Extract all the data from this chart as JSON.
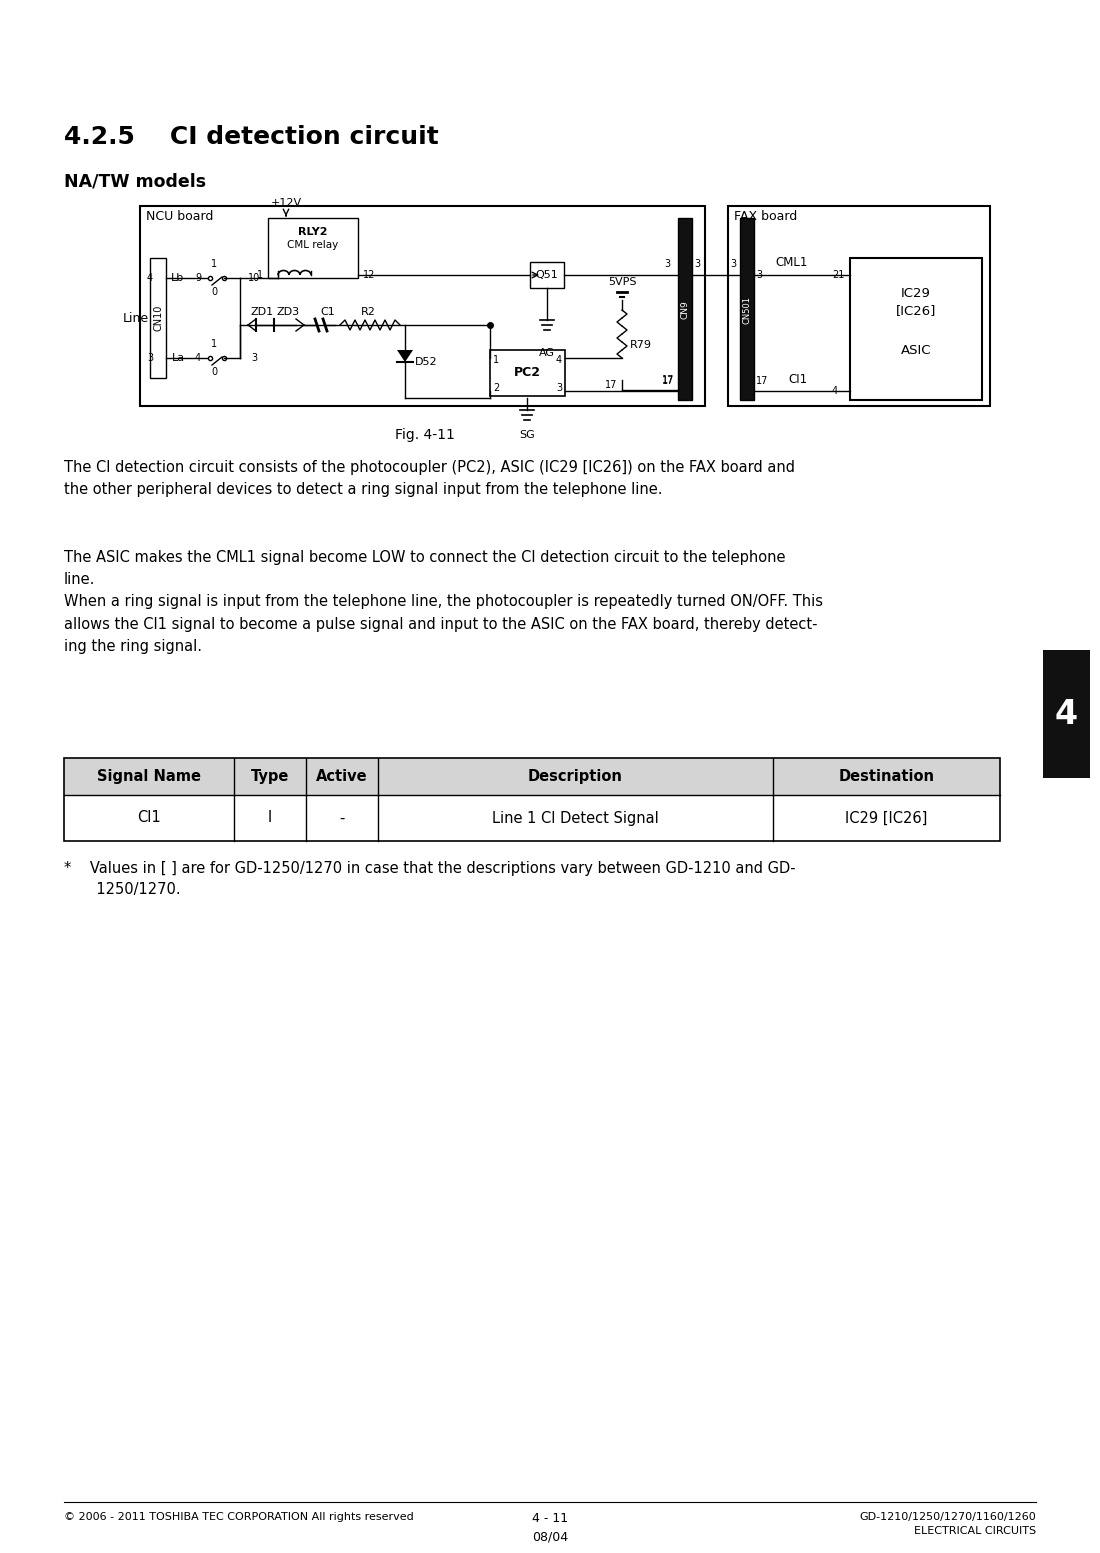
{
  "title": "4.2.5    CI detection circuit",
  "subtitle": "NA/TW models",
  "fig_caption": "Fig. 4-11",
  "para1": "The CI detection circuit consists of the photocoupler (PC2), ASIC (IC29 [IC26]) on the FAX board and\nthe other peripheral devices to detect a ring signal input from the telephone line.",
  "para2": "The ASIC makes the CML1 signal become LOW to connect the CI detection circuit to the telephone\nline.\nWhen a ring signal is input from the telephone line, the photocoupler is repeatedly turned ON/OFF. This\nallows the CI1 signal to become a pulse signal and input to the ASIC on the FAX board, thereby detect-\ning the ring signal.",
  "table_headers": [
    "Signal Name",
    "Type",
    "Active",
    "Description",
    "Destination"
  ],
  "table_row": [
    "CI1",
    "I",
    "-",
    "Line 1 CI Detect Signal",
    "IC29 [IC26]"
  ],
  "footer_left": "© 2006 - 2011 TOSHIBA TEC CORPORATION All rights reserved",
  "footer_right": "GD-1210/1250/1270/1160/1260\nELECTRICAL CIRCUITS",
  "footer_center": "4 - 11\n08/04",
  "tab_label": "4",
  "bg_color": "#ffffff",
  "text_color": "#000000"
}
